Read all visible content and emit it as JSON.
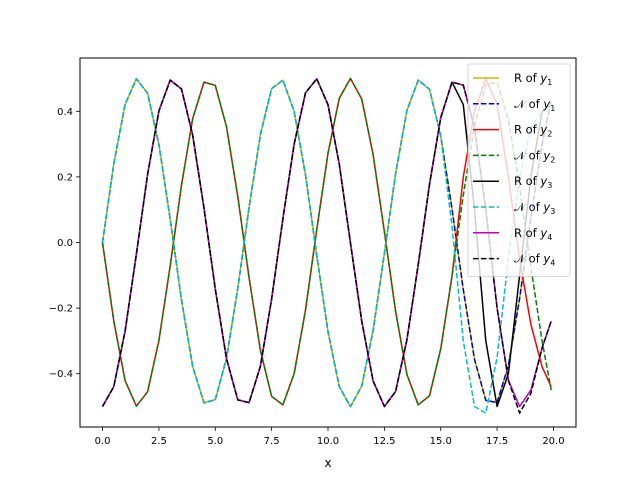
{
  "chart_data": {
    "type": "line",
    "title": "",
    "xlabel": "x",
    "ylabel": "",
    "xlim": [
      -1.0,
      21.0
    ],
    "ylim": [
      -0.5625,
      0.5625
    ],
    "xticks": [
      0.0,
      2.5,
      5.0,
      7.5,
      10.0,
      12.5,
      15.0,
      17.5,
      20.0
    ],
    "xtick_labels": [
      "0.0",
      "2.5",
      "5.0",
      "7.5",
      "10.0",
      "12.5",
      "15.0",
      "17.5",
      "20.0"
    ],
    "yticks": [
      -0.4,
      -0.2,
      0.0,
      0.2,
      0.4
    ],
    "ytick_labels": [
      "−0.4",
      "−0.2",
      "0.0",
      "0.2",
      "0.4"
    ],
    "grid": false,
    "legend_position": "top-right",
    "x": [
      0.0,
      0.5,
      1.0,
      1.5,
      2.0,
      2.5,
      3.0,
      3.5,
      4.0,
      4.5,
      5.0,
      5.5,
      6.0,
      6.5,
      7.0,
      7.5,
      8.0,
      8.5,
      9.0,
      9.5,
      10.0,
      10.5,
      11.0,
      11.5,
      12.0,
      12.5,
      13.0,
      13.5,
      14.0,
      14.5,
      15.0,
      15.5,
      16.0,
      16.5,
      17.0,
      17.5,
      18.0,
      18.5,
      19.0,
      19.5,
      19.9
    ],
    "series": [
      {
        "name": "R of y1",
        "label_prefix": "R of ",
        "label_var": "y",
        "label_sub": "1",
        "color": "#bfbf00",
        "dash": "solid",
        "values": [
          0.0,
          0.24,
          0.421,
          0.499,
          0.455,
          0.299,
          0.071,
          -0.175,
          -0.378,
          -0.489,
          -0.479,
          -0.353,
          -0.14,
          0.108,
          0.329,
          0.469,
          0.495,
          0.399,
          0.206,
          -0.038,
          -0.272,
          -0.44,
          -0.5,
          -0.437,
          -0.268,
          -0.033,
          0.21,
          0.402,
          0.495,
          0.467,
          0.325,
          0.103,
          -0.144,
          -0.356,
          -0.481,
          -0.488,
          -0.375,
          -0.171,
          0.075,
          0.302,
          0.433
        ]
      },
      {
        "name": "𝒩 of y1",
        "label_prefix": "𝒩 of ",
        "label_var": "y",
        "label_sub": "1",
        "color": "#0000bf",
        "dash": "dashed",
        "values": [
          0.0,
          0.24,
          0.421,
          0.499,
          0.455,
          0.299,
          0.071,
          -0.175,
          -0.378,
          -0.489,
          -0.479,
          -0.353,
          -0.14,
          0.108,
          0.329,
          0.469,
          0.495,
          0.399,
          0.206,
          -0.038,
          -0.272,
          -0.44,
          -0.5,
          -0.437,
          -0.268,
          -0.033,
          0.21,
          0.402,
          0.495,
          0.467,
          0.325,
          0.103,
          -0.144,
          -0.356,
          -0.481,
          -0.488,
          -0.375,
          -0.171,
          0.075,
          0.302,
          0.433
        ]
      },
      {
        "name": "R of y2",
        "label_prefix": "R of ",
        "label_var": "y",
        "label_sub": "2",
        "color": "#ff0000",
        "dash": "solid",
        "values": [
          0.0,
          -0.24,
          -0.421,
          -0.499,
          -0.455,
          -0.299,
          -0.071,
          0.175,
          0.378,
          0.489,
          0.479,
          0.353,
          0.14,
          -0.108,
          -0.329,
          -0.469,
          -0.495,
          -0.399,
          -0.206,
          0.038,
          0.272,
          0.44,
          0.5,
          0.437,
          0.268,
          0.033,
          -0.21,
          -0.402,
          -0.495,
          -0.467,
          -0.325,
          -0.103,
          0.2,
          0.4,
          0.5,
          0.42,
          0.2,
          -0.05,
          -0.25,
          -0.38,
          -0.44
        ]
      },
      {
        "name": "𝒩 of y2",
        "label_prefix": "𝒩 of ",
        "label_var": "y",
        "label_sub": "2",
        "color": "#008000",
        "dash": "dashed",
        "values": [
          0.0,
          -0.24,
          -0.421,
          -0.499,
          -0.455,
          -0.299,
          -0.071,
          0.175,
          0.378,
          0.489,
          0.479,
          0.353,
          0.14,
          -0.108,
          -0.329,
          -0.469,
          -0.495,
          -0.399,
          -0.206,
          0.038,
          0.272,
          0.44,
          0.5,
          0.437,
          0.268,
          0.033,
          -0.21,
          -0.402,
          -0.495,
          -0.467,
          -0.325,
          -0.103,
          0.144,
          0.356,
          0.481,
          0.488,
          0.375,
          0.171,
          -0.075,
          -0.302,
          -0.45
        ]
      },
      {
        "name": "R of y3",
        "label_prefix": "R of ",
        "label_var": "y",
        "label_sub": "3",
        "color": "#000000",
        "dash": "solid",
        "values": [
          -0.5,
          -0.439,
          -0.27,
          -0.035,
          0.208,
          0.401,
          0.495,
          0.468,
          0.327,
          0.105,
          -0.142,
          -0.354,
          -0.48,
          -0.488,
          -0.377,
          -0.173,
          0.073,
          0.301,
          0.456,
          0.499,
          0.42,
          0.238,
          -0.002,
          -0.241,
          -0.422,
          -0.5,
          -0.454,
          -0.297,
          -0.068,
          0.177,
          0.38,
          0.489,
          0.42,
          0.1,
          -0.3,
          -0.5,
          -0.4,
          -0.1,
          0.2,
          0.4,
          0.42
        ]
      },
      {
        "name": "𝒩 of y3",
        "label_prefix": "𝒩 of ",
        "label_var": "y",
        "label_sub": "3",
        "color": "#00bfbf",
        "dash": "dashed",
        "values": [
          0.0,
          0.24,
          0.421,
          0.499,
          0.455,
          0.299,
          0.071,
          -0.175,
          -0.378,
          -0.489,
          -0.479,
          -0.353,
          -0.14,
          0.108,
          0.329,
          0.469,
          0.495,
          0.399,
          0.206,
          -0.038,
          -0.272,
          -0.44,
          -0.5,
          -0.437,
          -0.268,
          -0.033,
          0.21,
          0.402,
          0.495,
          0.467,
          0.325,
          0.05,
          -0.3,
          -0.5,
          -0.52,
          -0.35,
          -0.05,
          0.2,
          0.35,
          0.4,
          0.42
        ]
      },
      {
        "name": "R of y4",
        "label_prefix": "R of ",
        "label_var": "y",
        "label_sub": "4",
        "color": "#bf00bf",
        "dash": "solid",
        "values": [
          -0.5,
          -0.439,
          -0.27,
          -0.035,
          0.208,
          0.401,
          0.495,
          0.468,
          0.327,
          0.105,
          -0.142,
          -0.354,
          -0.48,
          -0.488,
          -0.377,
          -0.173,
          0.073,
          0.301,
          0.456,
          0.499,
          0.42,
          0.238,
          -0.002,
          -0.241,
          -0.422,
          -0.5,
          -0.454,
          -0.297,
          -0.068,
          0.177,
          0.38,
          0.489,
          0.48,
          0.35,
          0.1,
          -0.2,
          -0.42,
          -0.5,
          -0.45,
          -0.32,
          -0.24
        ]
      },
      {
        "name": "𝒩 of y4",
        "label_prefix": "𝒩 of ",
        "label_var": "y",
        "label_sub": "4",
        "color": "#000000",
        "dash": "dashed",
        "values": [
          -0.5,
          -0.439,
          -0.27,
          -0.035,
          0.208,
          0.401,
          0.495,
          0.468,
          0.327,
          0.105,
          -0.142,
          -0.354,
          -0.48,
          -0.488,
          -0.377,
          -0.173,
          0.073,
          0.301,
          0.456,
          0.499,
          0.42,
          0.238,
          -0.002,
          -0.241,
          -0.422,
          -0.5,
          -0.454,
          -0.297,
          -0.068,
          0.177,
          0.38,
          0.489,
          0.48,
          0.35,
          0.1,
          -0.2,
          -0.42,
          -0.52,
          -0.46,
          -0.32,
          -0.24
        ]
      }
    ]
  }
}
